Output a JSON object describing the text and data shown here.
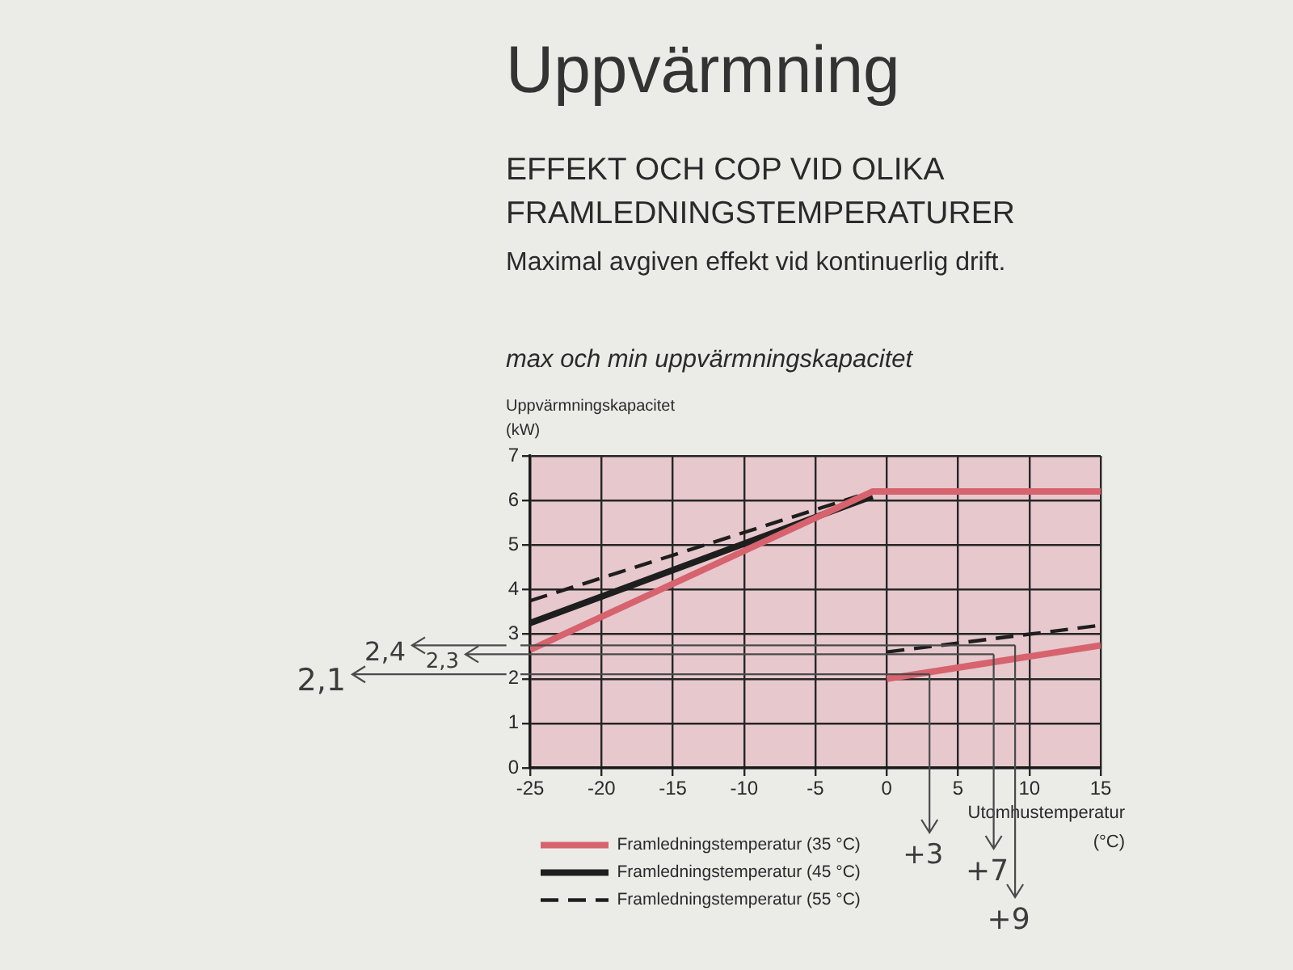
{
  "chart_data": {
    "type": "line",
    "title": "Uppvärmning",
    "subtitle": "EFFEKT OCH COP VID OLIKA FRAMLEDNINGSTEMPERATURER",
    "xlabel": "Utomhustemperatur (°C)",
    "ylabel": "Uppvärmningskapacitet (kW)",
    "annotations": [
      "Maximal avgiven effekt vid kontinuerlig drift.",
      "max och min uppvärmningskapacitet",
      {
        "text": "2,4",
        "x": 9,
        "y": 2.75
      },
      {
        "text": "+9",
        "x": 9,
        "y": 2.75
      },
      {
        "text": "2,3",
        "x": 7.5,
        "y": 2.55
      },
      {
        "text": "+7",
        "x": 7.5,
        "y": 2.55
      },
      {
        "text": "2,1",
        "x": 3,
        "y": 2.1
      },
      {
        "text": "+3",
        "x": 3,
        "y": 2.1
      }
    ],
    "series": [
      {
        "name": "Framledningstemperatur (35 °C)",
        "color": "#d6636e",
        "x": [
          -25,
          -1,
          15
        ],
        "values": [
          2.65,
          6.2,
          6.2
        ]
      },
      {
        "name": "Framledningstemperatur (45 °C)",
        "color": "#1e1e1e",
        "x": [
          -25,
          -1
        ],
        "values": [
          3.25,
          6.1
        ]
      },
      {
        "name": "Framledningstemperatur (55 °C)",
        "color": "#1e1e1e",
        "line_style": "dashed",
        "x": [
          -25,
          -2
        ],
        "values": [
          3.75,
          6.1
        ]
      },
      {
        "color": "#d6636e",
        "x": [
          0,
          15
        ],
        "values": [
          2.0,
          2.75
        ]
      },
      {
        "color": "#1e1e1e",
        "line_style": "dashed",
        "x": [
          0,
          15
        ],
        "values": [
          2.6,
          3.2
        ]
      }
    ],
    "xlim": [
      -25,
      15
    ],
    "ylim": [
      0,
      7
    ],
    "xticks": [
      -25,
      -20,
      -15,
      -10,
      -5,
      0,
      5,
      10,
      15
    ],
    "yticks": [
      0,
      1,
      2,
      3,
      4,
      5,
      6,
      7
    ],
    "grid": true,
    "legend": "bottom left"
  }
}
